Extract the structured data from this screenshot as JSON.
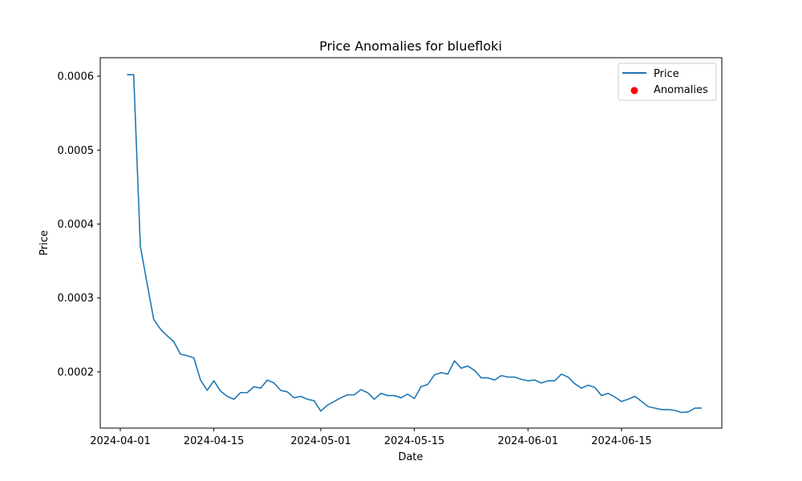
{
  "chart_data": {
    "type": "line",
    "title": "Price Anomalies for bluefloki",
    "xlabel": "Date",
    "ylabel": "Price",
    "x_ticks": [
      "2024-04-01",
      "2024-04-15",
      "2024-05-01",
      "2024-05-15",
      "2024-06-01",
      "2024-06-15"
    ],
    "y_ticks": [
      "0.0002",
      "0.0003",
      "0.0004",
      "0.0005",
      "0.0006"
    ],
    "xlim": [
      "2024-03-29",
      "2024-06-30"
    ],
    "ylim": [
      0.000124,
      0.000625
    ],
    "legend": {
      "placement": "top-right",
      "entries": [
        {
          "label": "Price",
          "kind": "line",
          "color": "#1f77b4"
        },
        {
          "label": "Anomalies",
          "kind": "marker",
          "color": "#ff0000"
        }
      ]
    },
    "series": [
      {
        "name": "Price",
        "color": "#1f77b4",
        "points": [
          [
            "2024-04-02",
            0.000602
          ],
          [
            "2024-04-03",
            0.000602
          ],
          [
            "2024-04-04",
            0.00037
          ],
          [
            "2024-04-05",
            0.00032
          ],
          [
            "2024-04-06",
            0.000271
          ],
          [
            "2024-04-07",
            0.000258
          ],
          [
            "2024-04-08",
            0.000249
          ],
          [
            "2024-04-09",
            0.000241
          ],
          [
            "2024-04-10",
            0.000224
          ],
          [
            "2024-04-11",
            0.000222
          ],
          [
            "2024-04-12",
            0.000219
          ],
          [
            "2024-04-13",
            0.000189
          ],
          [
            "2024-04-14",
            0.000175
          ],
          [
            "2024-04-15",
            0.000188
          ],
          [
            "2024-04-16",
            0.000174
          ],
          [
            "2024-04-17",
            0.000167
          ],
          [
            "2024-04-18",
            0.000163
          ],
          [
            "2024-04-19",
            0.000172
          ],
          [
            "2024-04-20",
            0.000172
          ],
          [
            "2024-04-21",
            0.00018
          ],
          [
            "2024-04-22",
            0.000178
          ],
          [
            "2024-04-23",
            0.000189
          ],
          [
            "2024-04-24",
            0.000185
          ],
          [
            "2024-04-25",
            0.000175
          ],
          [
            "2024-04-26",
            0.000173
          ],
          [
            "2024-04-27",
            0.000165
          ],
          [
            "2024-04-28",
            0.000167
          ],
          [
            "2024-04-29",
            0.000163
          ],
          [
            "2024-04-30",
            0.000161
          ],
          [
            "2024-05-01",
            0.000147
          ],
          [
            "2024-05-02",
            0.000155
          ],
          [
            "2024-05-03",
            0.00016
          ],
          [
            "2024-05-04",
            0.000165
          ],
          [
            "2024-05-05",
            0.000169
          ],
          [
            "2024-05-06",
            0.000169
          ],
          [
            "2024-05-07",
            0.000176
          ],
          [
            "2024-05-08",
            0.000172
          ],
          [
            "2024-05-09",
            0.000163
          ],
          [
            "2024-05-10",
            0.000171
          ],
          [
            "2024-05-11",
            0.000168
          ],
          [
            "2024-05-12",
            0.000168
          ],
          [
            "2024-05-13",
            0.000165
          ],
          [
            "2024-05-14",
            0.00017
          ],
          [
            "2024-05-15",
            0.000164
          ],
          [
            "2024-05-16",
            0.00018
          ],
          [
            "2024-05-17",
            0.000183
          ],
          [
            "2024-05-18",
            0.000196
          ],
          [
            "2024-05-19",
            0.000199
          ],
          [
            "2024-05-20",
            0.000197
          ],
          [
            "2024-05-21",
            0.000215
          ],
          [
            "2024-05-22",
            0.000205
          ],
          [
            "2024-05-23",
            0.000208
          ],
          [
            "2024-05-24",
            0.000202
          ],
          [
            "2024-05-25",
            0.000192
          ],
          [
            "2024-05-26",
            0.000192
          ],
          [
            "2024-05-27",
            0.000189
          ],
          [
            "2024-05-28",
            0.000195
          ],
          [
            "2024-05-29",
            0.000193
          ],
          [
            "2024-05-30",
            0.000193
          ],
          [
            "2024-05-31",
            0.00019
          ],
          [
            "2024-06-01",
            0.000188
          ],
          [
            "2024-06-02",
            0.000189
          ],
          [
            "2024-06-03",
            0.000185
          ],
          [
            "2024-06-04",
            0.000188
          ],
          [
            "2024-06-05",
            0.000188
          ],
          [
            "2024-06-06",
            0.000197
          ],
          [
            "2024-06-07",
            0.000193
          ],
          [
            "2024-06-08",
            0.000184
          ],
          [
            "2024-06-09",
            0.000178
          ],
          [
            "2024-06-10",
            0.000182
          ],
          [
            "2024-06-11",
            0.000179
          ],
          [
            "2024-06-12",
            0.000168
          ],
          [
            "2024-06-13",
            0.000171
          ],
          [
            "2024-06-14",
            0.000166
          ],
          [
            "2024-06-15",
            0.00016
          ],
          [
            "2024-06-16",
            0.000163
          ],
          [
            "2024-06-17",
            0.000167
          ],
          [
            "2024-06-18",
            0.00016
          ],
          [
            "2024-06-19",
            0.000153
          ],
          [
            "2024-06-20",
            0.000151
          ],
          [
            "2024-06-21",
            0.000149
          ],
          [
            "2024-06-22",
            0.000149
          ],
          [
            "2024-06-23",
            0.000148
          ],
          [
            "2024-06-24",
            0.000145
          ],
          [
            "2024-06-25",
            0.000146
          ],
          [
            "2024-06-26",
            0.000151
          ],
          [
            "2024-06-27",
            0.000151
          ]
        ]
      }
    ],
    "anomalies": []
  }
}
